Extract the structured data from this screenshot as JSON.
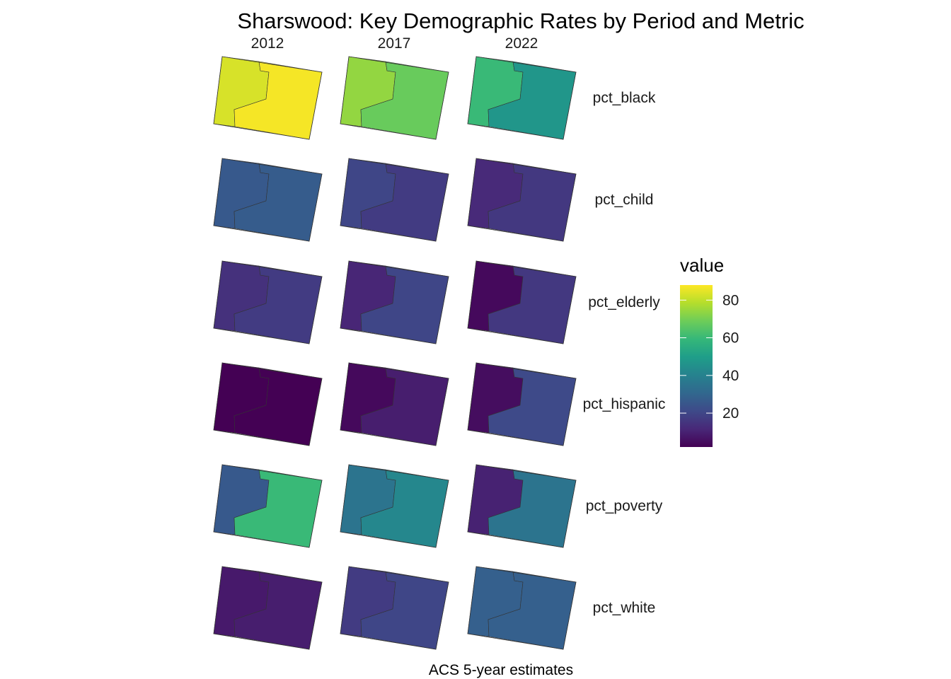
{
  "chart_data": {
    "type": "heatmap",
    "title": "Sharswood: Key Demographic Rates by Period and Metric",
    "caption": "ACS 5-year estimates",
    "columns": [
      "2012",
      "2017",
      "2022"
    ],
    "rows": [
      "pct_black",
      "pct_child",
      "pct_elderly",
      "pct_hispanic",
      "pct_poverty",
      "pct_white"
    ],
    "regions": [
      "west_tract",
      "east_tract"
    ],
    "values": {
      "pct_black": {
        "2012": [
          83,
          87
        ],
        "2017": [
          74,
          68
        ],
        "2022": [
          60,
          47
        ]
      },
      "pct_child": {
        "2012": [
          26,
          27
        ],
        "2017": [
          20,
          17
        ],
        "2022": [
          12,
          16
        ]
      },
      "pct_elderly": {
        "2012": [
          14,
          17
        ],
        "2017": [
          11,
          20
        ],
        "2022": [
          4,
          16
        ]
      },
      "pct_hispanic": {
        "2012": [
          1,
          1
        ],
        "2017": [
          4,
          9
        ],
        "2022": [
          5,
          21
        ]
      },
      "pct_poverty": {
        "2012": [
          26,
          60
        ],
        "2017": [
          35,
          42
        ],
        "2022": [
          10,
          35
        ]
      },
      "pct_white": {
        "2012": [
          8,
          9
        ],
        "2017": [
          17,
          20
        ],
        "2022": [
          28,
          28
        ]
      }
    },
    "legend": {
      "title": "value",
      "ticks": [
        20,
        40,
        60,
        80
      ],
      "range": [
        2,
        88
      ],
      "palette": "viridis"
    }
  }
}
